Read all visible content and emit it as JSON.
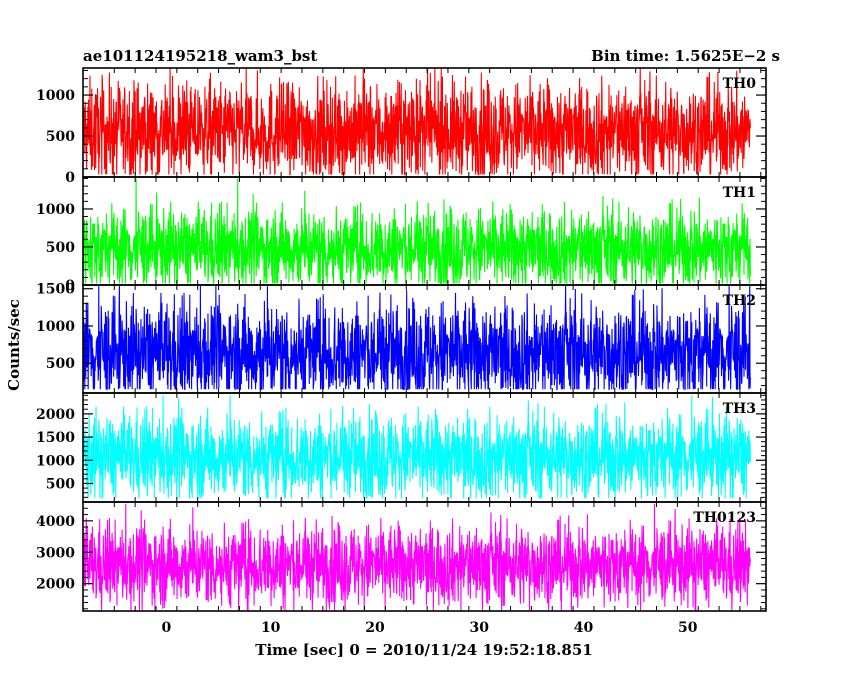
{
  "chart_data": {
    "type": "line",
    "title_left": "ae101124195218_wam3_bst",
    "title_right": "Bin time: 1.5625E−2 s",
    "xlabel": "Time [sec] 0 = 2010/11/24 19:52:18.851",
    "ylabel": "Counts/sec",
    "xlim": [
      -8,
      57.5
    ],
    "x_data_range": [
      -8,
      56
    ],
    "x_ticks": [
      0,
      10,
      20,
      30,
      40,
      50
    ],
    "x_tick_labels": [
      "0",
      "10",
      "20",
      "30",
      "40",
      "50"
    ],
    "grid": false,
    "panels": [
      {
        "name": "TH0",
        "color": "#ff0000",
        "ylim": [
          0,
          1330
        ],
        "y_ticks": [
          0,
          500,
          1000
        ],
        "y_tick_labels": [
          "0",
          "500",
          "1000"
        ],
        "approx_mean": 560,
        "approx_band": [
          250,
          870
        ],
        "approx_range": [
          30,
          1330
        ]
      },
      {
        "name": "TH1",
        "color": "#00ff00",
        "ylim": [
          0,
          1420
        ],
        "y_ticks": [
          0,
          500,
          1000
        ],
        "y_tick_labels": [
          "0",
          "500",
          "1000"
        ],
        "approx_mean": 480,
        "approx_band": [
          200,
          760
        ],
        "approx_range": [
          20,
          1400
        ]
      },
      {
        "name": "TH2",
        "color": "#0000ff",
        "ylim": [
          100,
          1550
        ],
        "y_ticks": [
          500,
          1000,
          1500
        ],
        "y_tick_labels": [
          "500",
          "1000",
          "1500"
        ],
        "approx_mean": 640,
        "approx_band": [
          320,
          1050
        ],
        "approx_range": [
          150,
          1540
        ]
      },
      {
        "name": "TH3",
        "color": "#00ffff",
        "ylim": [
          100,
          2450
        ],
        "y_ticks": [
          500,
          1000,
          1500,
          2000
        ],
        "y_tick_labels": [
          "500",
          "1000",
          "1500",
          "2000"
        ],
        "approx_mean": 1080,
        "approx_band": [
          600,
          1580
        ],
        "approx_range": [
          180,
          2400
        ]
      },
      {
        "name": "TH0123",
        "color": "#ff00ff",
        "ylim": [
          1130,
          4600
        ],
        "y_ticks": [
          2000,
          3000,
          4000
        ],
        "y_tick_labels": [
          "2000",
          "3000",
          "4000"
        ],
        "approx_mean": 2600,
        "approx_band": [
          1900,
          3250
        ],
        "approx_range": [
          1130,
          4550
        ]
      }
    ]
  }
}
